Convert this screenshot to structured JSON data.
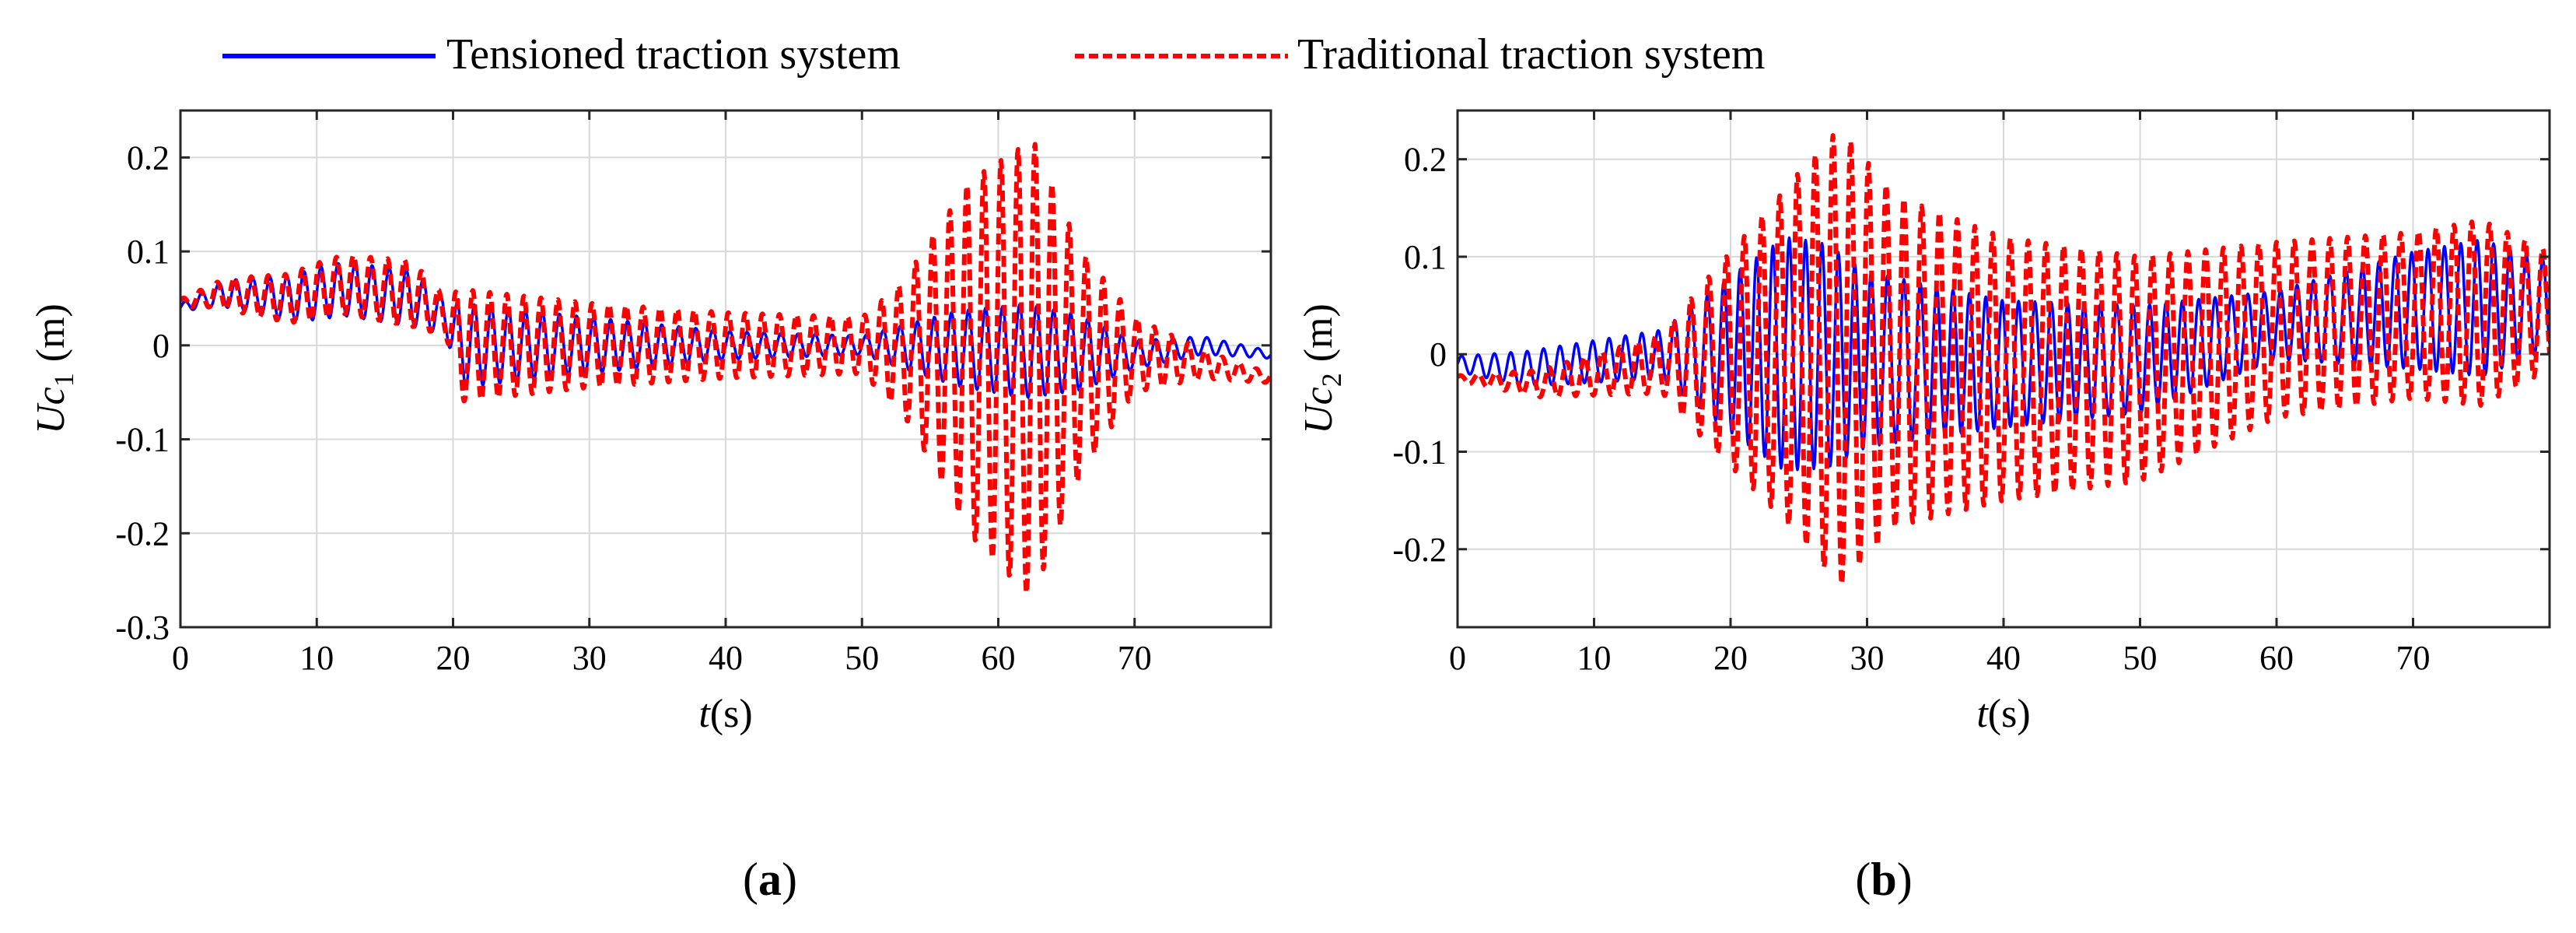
{
  "legend": {
    "items": [
      {
        "name": "Tensioned traction system",
        "color": "#0000ff",
        "style": "solid"
      },
      {
        "name": "Traditional traction system",
        "color": "#ff0000",
        "style": "dashed"
      }
    ]
  },
  "chart_data": [
    {
      "type": "line",
      "panel_label": "a",
      "xlabel_var": "t",
      "xlabel_unit": "(s)",
      "ylabel_var": "U",
      "ylabel_sub_var": "c",
      "ylabel_sub_index": "1",
      "ylabel_unit": "(m)",
      "xlim": [
        0,
        80
      ],
      "ylim": [
        -0.3,
        0.25
      ],
      "xticks": [
        0,
        10,
        20,
        30,
        40,
        50,
        60,
        70
      ],
      "xtick_labels": [
        "0",
        "10",
        "20",
        "30",
        "40",
        "50",
        "60",
        "70"
      ],
      "yticks": [
        -0.3,
        -0.2,
        -0.1,
        0,
        0.1,
        0.2
      ],
      "ytick_labels": [
        "-0.3",
        "-0.2",
        "-0.1",
        "0",
        "0.1",
        "0.2"
      ],
      "grid": true,
      "series": [
        {
          "name": "Tensioned traction system",
          "color": "#0000ff",
          "knots": [
            [
              0,
              0.04
            ],
            [
              3,
              0.055
            ],
            [
              8,
              0.05
            ],
            [
              12,
              0.06
            ],
            [
              17,
              0.05
            ],
            [
              19.5,
              0.03
            ],
            [
              20.5,
              0.0
            ],
            [
              30,
              0.0
            ],
            [
              40,
              0.0
            ],
            [
              50,
              0.0
            ],
            [
              60,
              -0.005
            ],
            [
              70,
              -0.01
            ],
            [
              75,
              0.0
            ],
            [
              80,
              -0.01
            ]
          ],
          "amp_knots": [
            [
              0,
              0.004
            ],
            [
              4,
              0.016
            ],
            [
              10,
              0.028
            ],
            [
              17,
              0.03
            ],
            [
              19.5,
              0.02
            ],
            [
              20.5,
              0.045
            ],
            [
              30,
              0.03
            ],
            [
              40,
              0.015
            ],
            [
              50,
              0.01
            ],
            [
              57,
              0.04
            ],
            [
              62,
              0.05
            ],
            [
              66,
              0.04
            ],
            [
              70,
              0.015
            ],
            [
              80,
              0.004
            ]
          ],
          "period": 1.25,
          "samples": 1600
        },
        {
          "name": "Traditional traction system",
          "color": "#ff0000",
          "knots": [
            [
              0,
              0.045
            ],
            [
              3,
              0.055
            ],
            [
              8,
              0.05
            ],
            [
              12,
              0.065
            ],
            [
              17,
              0.055
            ],
            [
              19.5,
              0.03
            ],
            [
              20.5,
              0.0
            ],
            [
              30,
              0.0
            ],
            [
              40,
              0.0
            ],
            [
              50,
              0.0
            ],
            [
              55,
              -0.005
            ],
            [
              62,
              -0.025
            ],
            [
              70,
              -0.01
            ],
            [
              75,
              -0.02
            ],
            [
              80,
              -0.035
            ]
          ],
          "amp_knots": [
            [
              0,
              0.004
            ],
            [
              4,
              0.018
            ],
            [
              10,
              0.03
            ],
            [
              17,
              0.035
            ],
            [
              19.5,
              0.02
            ],
            [
              20.5,
              0.06
            ],
            [
              30,
              0.045
            ],
            [
              40,
              0.035
            ],
            [
              50,
              0.03
            ],
            [
              53,
              0.07
            ],
            [
              58,
              0.19
            ],
            [
              62.5,
              0.245
            ],
            [
              66,
              0.12
            ],
            [
              70,
              0.04
            ],
            [
              75,
              0.015
            ],
            [
              80,
              0.005
            ]
          ],
          "period": 1.25,
          "samples": 1600
        }
      ]
    },
    {
      "type": "line",
      "panel_label": "b",
      "xlabel_var": "t",
      "xlabel_unit": "(s)",
      "ylabel_var": "U",
      "ylabel_sub_var": "c",
      "ylabel_sub_index": "2",
      "ylabel_unit": "(m)",
      "xlim": [
        0,
        80
      ],
      "ylim": [
        -0.28,
        0.25
      ],
      "xticks": [
        0,
        10,
        20,
        30,
        40,
        50,
        60,
        70
      ],
      "xtick_labels": [
        "0",
        "10",
        "20",
        "30",
        "40",
        "50",
        "60",
        "70"
      ],
      "yticks": [
        -0.2,
        -0.1,
        0,
        0.1,
        0.2
      ],
      "ytick_labels": [
        "-0.2",
        "-0.1",
        "0",
        "0.1",
        "0.2"
      ],
      "grid": true,
      "series": [
        {
          "name": "Tensioned traction system",
          "color": "#0000ff",
          "knots": [
            [
              0,
              -0.01
            ],
            [
              5,
              -0.015
            ],
            [
              15,
              0.0
            ],
            [
              25,
              0.0
            ],
            [
              30,
              -0.005
            ],
            [
              40,
              -0.01
            ],
            [
              50,
              -0.005
            ],
            [
              60,
              0.03
            ],
            [
              70,
              0.045
            ],
            [
              80,
              0.05
            ]
          ],
          "amp_knots": [
            [
              0,
              0.008
            ],
            [
              5,
              0.018
            ],
            [
              15,
              0.025
            ],
            [
              20,
              0.08
            ],
            [
              24,
              0.12
            ],
            [
              27,
              0.115
            ],
            [
              30,
              0.09
            ],
            [
              40,
              0.065
            ],
            [
              50,
              0.055
            ],
            [
              60,
              0.035
            ],
            [
              70,
              0.06
            ],
            [
              75,
              0.07
            ],
            [
              80,
              0.045
            ]
          ],
          "period": 1.2,
          "samples": 1600
        },
        {
          "name": "Traditional traction system",
          "color": "#ff0000",
          "knots": [
            [
              0,
              -0.025
            ],
            [
              6,
              -0.03
            ],
            [
              15,
              -0.01
            ],
            [
              25,
              0.0
            ],
            [
              30,
              -0.005
            ],
            [
              40,
              -0.015
            ],
            [
              50,
              -0.015
            ],
            [
              60,
              0.025
            ],
            [
              70,
              0.04
            ],
            [
              80,
              0.045
            ]
          ],
          "amp_knots": [
            [
              0,
              0.003
            ],
            [
              5,
              0.012
            ],
            [
              15,
              0.03
            ],
            [
              18,
              0.08
            ],
            [
              24,
              0.17
            ],
            [
              28,
              0.235
            ],
            [
              32,
              0.17
            ],
            [
              40,
              0.135
            ],
            [
              50,
              0.115
            ],
            [
              60,
              0.09
            ],
            [
              70,
              0.085
            ],
            [
              75,
              0.095
            ],
            [
              80,
              0.06
            ]
          ],
          "period": 1.3,
          "samples": 1600
        }
      ]
    }
  ]
}
